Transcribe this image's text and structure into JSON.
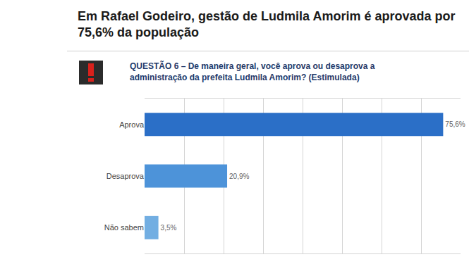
{
  "chart_data": {
    "type": "bar",
    "orientation": "horizontal",
    "title": "Em Rafael Godeiro, gestão de Ludmila Amorim é aprovada por 75,6% da população",
    "subtitle": "QUESTÃO 6 – De maneira geral, você aprova ou desaprova a administração da prefeita Ludmila Amorim? (Estimulada)",
    "categories": [
      "Aprova",
      "Desaprova",
      "Não sabem"
    ],
    "values": [
      75.6,
      20.9,
      3.5
    ],
    "value_labels": [
      "75,6%",
      "20,9%",
      "3,5%"
    ],
    "colors": [
      "#2b6fc7",
      "#4d93d9",
      "#72aee2"
    ],
    "data_labels": true,
    "xlim": [
      0,
      80
    ],
    "xticks": [
      0,
      10,
      20,
      30,
      40,
      50,
      60,
      70,
      80
    ],
    "tick_labels": "y",
    "grid": true
  }
}
